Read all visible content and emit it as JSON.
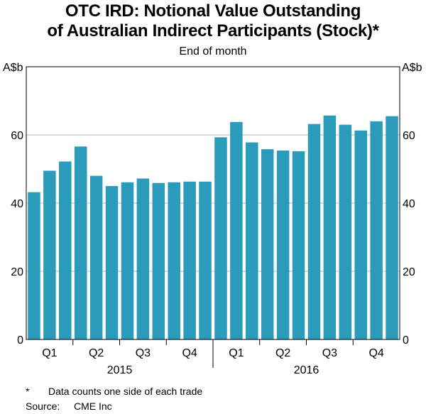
{
  "title_line1": "OTC IRD: Notional Value Outstanding",
  "title_line2": "of Australian Indirect Participants (Stock)*",
  "subtitle": "End of month",
  "unit_left": "A$b",
  "unit_right": "A$b",
  "footnote_mark": "*",
  "footnote_text": "Data counts one side of each trade",
  "source_label": "Source:",
  "source_text": "CME Inc",
  "colors": {
    "bar": "#2b9bbb",
    "grid": "#b3b3b3",
    "axis": "#000000"
  },
  "chart_data": {
    "type": "bar",
    "title": "OTC IRD: Notional Value Outstanding of Australian Indirect Participants (Stock)*",
    "subtitle": "End of month",
    "ylabel": "A$b",
    "ylim": [
      0,
      80
    ],
    "yticks": [
      0,
      20,
      40,
      60
    ],
    "grid": true,
    "categories": [
      "Jan 2015",
      "Feb 2015",
      "Mar 2015",
      "Apr 2015",
      "May 2015",
      "Jun 2015",
      "Jul 2015",
      "Aug 2015",
      "Sep 2015",
      "Oct 2015",
      "Nov 2015",
      "Dec 2015",
      "Jan 2016",
      "Feb 2016",
      "Mar 2016",
      "Apr 2016",
      "May 2016",
      "Jun 2016",
      "Jul 2016",
      "Aug 2016",
      "Sep 2016",
      "Oct 2016",
      "Nov 2016",
      "Dec 2016"
    ],
    "values": [
      43.2,
      49.5,
      52.2,
      56.6,
      48.0,
      45.0,
      46.1,
      47.2,
      45.9,
      46.1,
      46.3,
      46.3,
      59.3,
      63.8,
      57.8,
      55.8,
      55.4,
      55.2,
      63.2,
      65.7,
      63.0,
      61.3,
      64.0,
      65.5
    ],
    "quarter_labels": [
      "Q1",
      "Q2",
      "Q3",
      "Q4",
      "Q1",
      "Q2",
      "Q3",
      "Q4"
    ],
    "year_labels": [
      "2015",
      "2016"
    ]
  }
}
